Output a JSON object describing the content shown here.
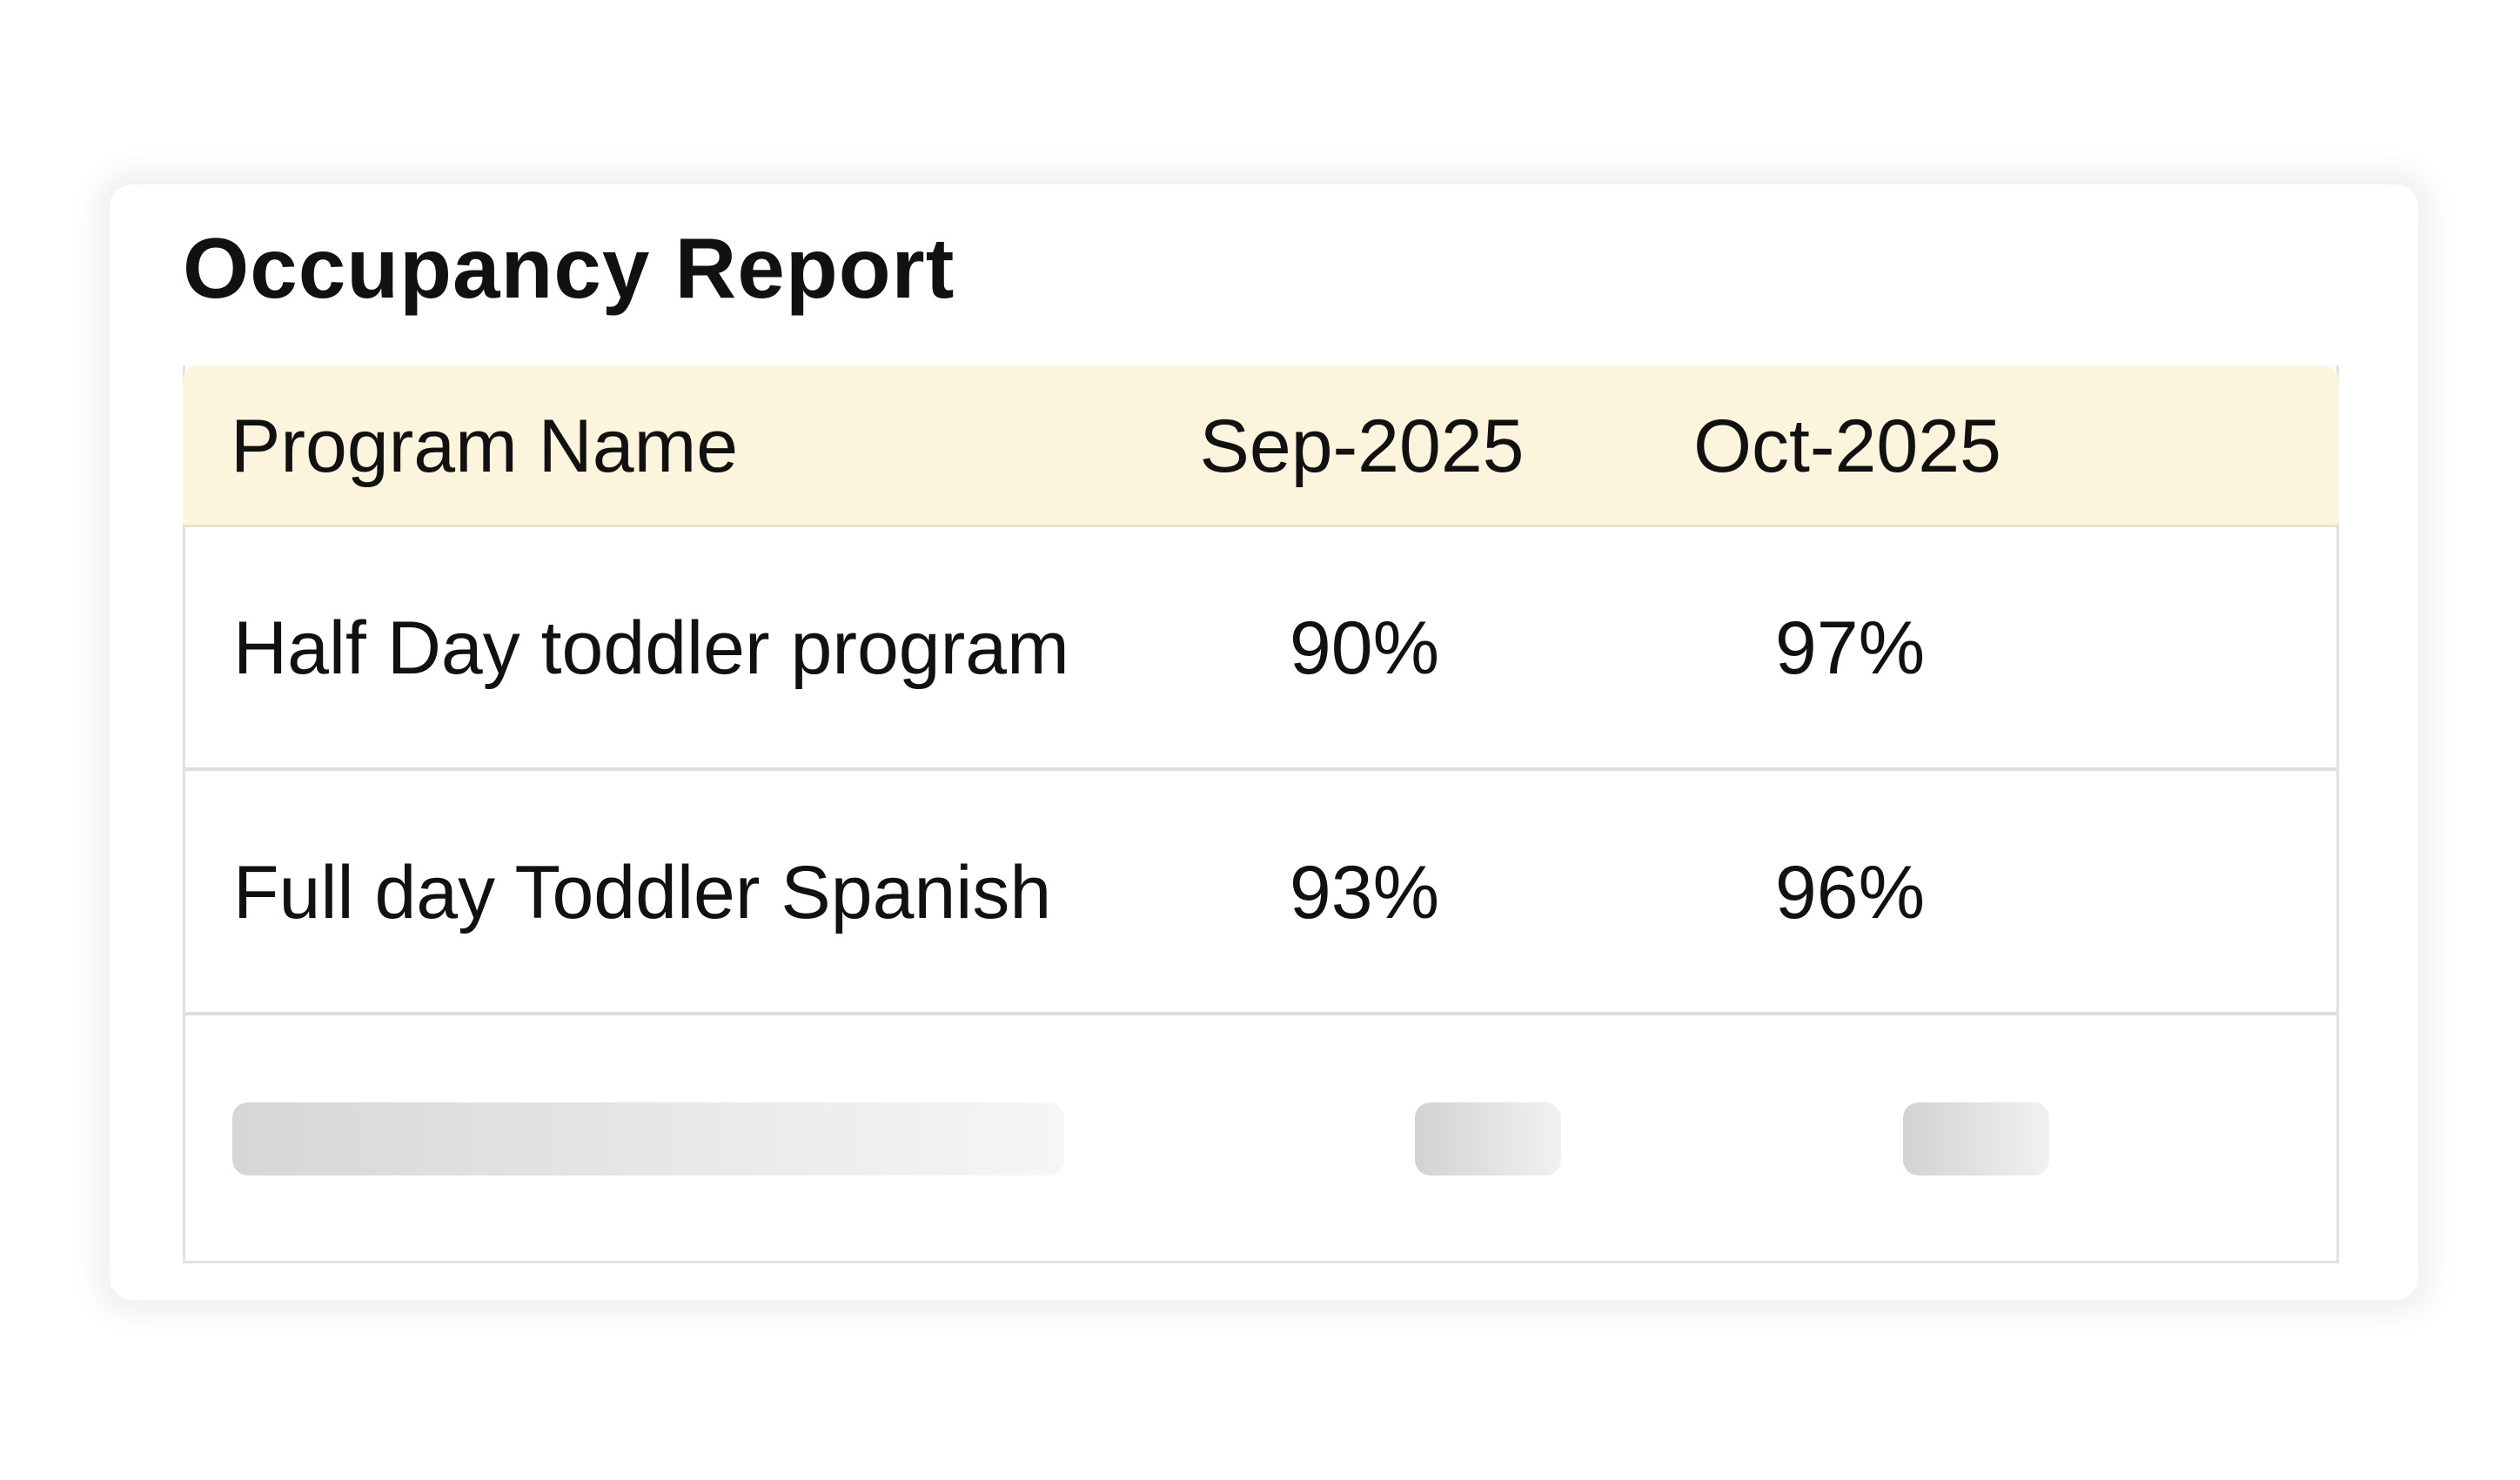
{
  "report": {
    "title": "Occupancy Report"
  },
  "table": {
    "headers": [
      "Program Name",
      "Sep-2025",
      "Oct-2025"
    ],
    "rows": [
      [
        "Half Day toddler program",
        "90%",
        "97%"
      ],
      [
        "Full day Toddler Spanish",
        "93%",
        "96%"
      ]
    ],
    "loading_rows": 1
  },
  "colors": {
    "header_background": "#fdf4dd",
    "border": "#e2e2e2",
    "text": "#111111",
    "skeleton": "#d6d6d6"
  }
}
